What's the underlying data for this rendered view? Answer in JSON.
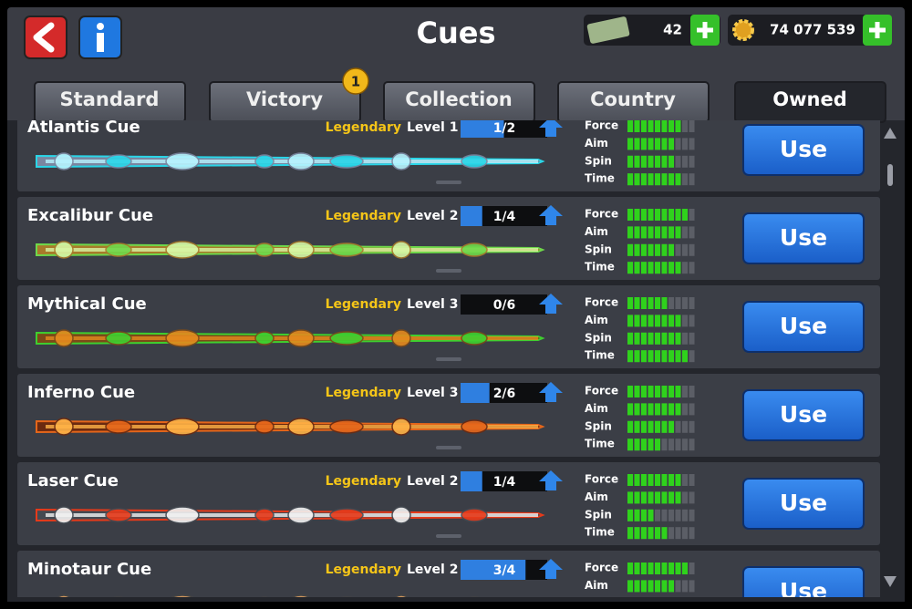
{
  "header": {
    "title": "Cues",
    "cash": "42",
    "coins": "74 077 539"
  },
  "tabs": [
    {
      "label": "Standard"
    },
    {
      "label": "Victory",
      "badge": "1"
    },
    {
      "label": "Collection"
    },
    {
      "label": "Country"
    },
    {
      "label": "Owned"
    }
  ],
  "active_tab": 4,
  "cues": [
    {
      "name": "Atlantis Cue",
      "rarity": "Legendary",
      "level": "Level 1",
      "progress": "1/2",
      "button": "Use",
      "stats": [
        {
          "label": "Force",
          "value": 8
        },
        {
          "label": "Aim",
          "value": 7
        },
        {
          "label": "Spin",
          "value": 7
        },
        {
          "label": "Time",
          "value": 8
        }
      ]
    },
    {
      "name": "Excalibur Cue",
      "rarity": "Legendary",
      "level": "Level 2",
      "progress": "1/4",
      "button": "Use",
      "stats": [
        {
          "label": "Force",
          "value": 9
        },
        {
          "label": "Aim",
          "value": 8
        },
        {
          "label": "Spin",
          "value": 7
        },
        {
          "label": "Time",
          "value": 8
        }
      ]
    },
    {
      "name": "Mythical Cue",
      "rarity": "Legendary",
      "level": "Level 3",
      "progress": "0/6",
      "button": "Use",
      "stats": [
        {
          "label": "Force",
          "value": 6
        },
        {
          "label": "Aim",
          "value": 8
        },
        {
          "label": "Spin",
          "value": 8
        },
        {
          "label": "Time",
          "value": 9
        }
      ]
    },
    {
      "name": "Inferno Cue",
      "rarity": "Legendary",
      "level": "Level 3",
      "progress": "2/6",
      "button": "Use",
      "stats": [
        {
          "label": "Force",
          "value": 8
        },
        {
          "label": "Aim",
          "value": 8
        },
        {
          "label": "Spin",
          "value": 7
        },
        {
          "label": "Time",
          "value": 5
        }
      ]
    },
    {
      "name": "Laser Cue",
      "rarity": "Legendary",
      "level": "Level 2",
      "progress": "1/4",
      "button": "Use",
      "stats": [
        {
          "label": "Force",
          "value": 8
        },
        {
          "label": "Aim",
          "value": 8
        },
        {
          "label": "Spin",
          "value": 4
        },
        {
          "label": "Time",
          "value": 6
        }
      ]
    },
    {
      "name": "Minotaur Cue",
      "rarity": "Legendary",
      "level": "Level 2",
      "progress": "3/4",
      "button": "Use",
      "stats": [
        {
          "label": "Force",
          "value": 9
        },
        {
          "label": "Aim",
          "value": 7
        }
      ]
    }
  ]
}
